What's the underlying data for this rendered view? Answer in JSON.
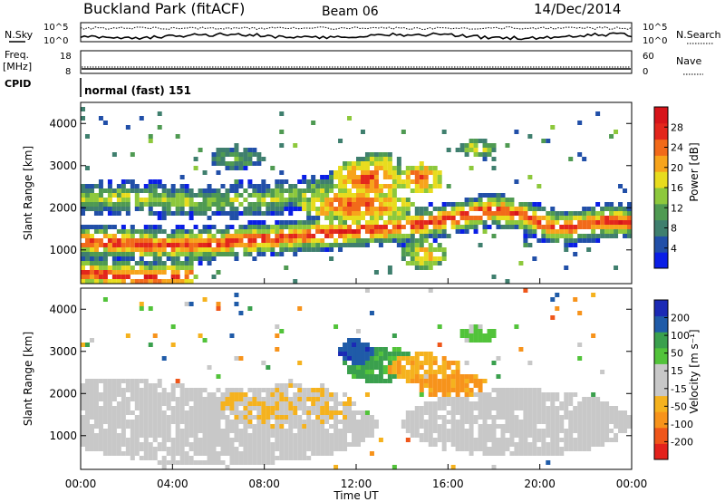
{
  "header": {
    "station": "Buckland Park (fitACF)",
    "beam": "Beam 06",
    "date": "14/Dec/2014"
  },
  "noise_panel": {
    "left_label": "N.Sky",
    "right_label": "N.Search",
    "left_ticks": [
      "10^5",
      "10^0"
    ],
    "right_ticks": [
      "10^5",
      "10^0"
    ]
  },
  "freq_panel": {
    "left_label": "Freq.",
    "left_unit": "[MHz]",
    "right_label": "Nave",
    "left_ticks": [
      "18",
      "8"
    ],
    "right_ticks": [
      "60",
      "0"
    ]
  },
  "cpid_panel": {
    "label": "CPID",
    "mode": "normal (fast) 151"
  },
  "x_axis": {
    "label": "Time UT",
    "ticks": [
      "00:00",
      "04:00",
      "08:00",
      "12:00",
      "16:00",
      "20:00",
      "00:00"
    ]
  },
  "power_panel": {
    "ylabel": "Slant Range [km]",
    "yticks": [
      "4000",
      "3000",
      "2000",
      "1000"
    ],
    "colorbar_label": "Power [dB]",
    "colorbar_ticks": [
      "28",
      "24",
      "20",
      "16",
      "12",
      "8",
      "4"
    ]
  },
  "velocity_panel": {
    "ylabel": "Slant Range [km]",
    "yticks": [
      "4000",
      "3000",
      "2000",
      "1000"
    ],
    "colorbar_label": "Velocity [m s⁻¹]",
    "colorbar_ticks": [
      "200",
      "100",
      "50",
      "15",
      "-15",
      "-50",
      "-100",
      "-200"
    ]
  },
  "colors": {
    "power_scale": [
      "#0a1ee6",
      "#214fa8",
      "#3f7f6e",
      "#4f9a52",
      "#8dc83c",
      "#e8dc1e",
      "#f7a41b",
      "#f26a1a",
      "#e3261c",
      "#d7141a"
    ],
    "velocity_scale": [
      "#e3221c",
      "#ef561a",
      "#f7931b",
      "#f5b21e",
      "#c8c8c8",
      "#c8c8c8",
      "#52c33a",
      "#3aa04d",
      "#1f5ba8",
      "#1b2ab5"
    ]
  },
  "chart_data": [
    {
      "type": "heatmap",
      "title": "Power [dB]",
      "xlabel": "Time UT",
      "ylabel": "Slant Range [km]",
      "xlim": [
        0,
        24
      ],
      "ylim": [
        200,
        4500
      ],
      "color_range": [
        0,
        32
      ],
      "bands": [
        {
          "name": "main",
          "x": [
            0,
            2,
            4,
            6,
            8,
            10,
            11,
            12,
            14,
            16,
            17,
            18,
            19,
            20,
            21,
            22,
            23,
            24
          ],
          "y": [
            1200,
            1150,
            1100,
            1150,
            1250,
            1350,
            1400,
            1450,
            1550,
            1700,
            1850,
            1950,
            1850,
            1650,
            1500,
            1600,
            1700,
            1650
          ],
          "width": 280,
          "peak": 28
        },
        {
          "name": "upper",
          "x": [
            0,
            2,
            4,
            6,
            8,
            10,
            11
          ],
          "y": [
            2200,
            2250,
            2150,
            2150,
            2200,
            2350,
            2450
          ],
          "width": 280,
          "peak": 16
        },
        {
          "name": "near",
          "x": [
            0,
            1,
            2,
            3,
            4,
            5
          ],
          "y": [
            450,
            420,
            380,
            350,
            380,
            400
          ],
          "width": 280,
          "peak": 28
        }
      ],
      "blobs": [
        {
          "t": 12.5,
          "r": 2700,
          "dt": 1.6,
          "dr": 450,
          "peak": 28
        },
        {
          "t": 14.8,
          "r": 2700,
          "dt": 1.0,
          "dr": 350,
          "peak": 28
        },
        {
          "t": 12.0,
          "r": 2050,
          "dt": 2.5,
          "dr": 350,
          "peak": 28
        },
        {
          "t": 13.0,
          "r": 3050,
          "dt": 1.0,
          "dr": 250,
          "peak": 20
        },
        {
          "t": 17.3,
          "r": 3400,
          "dt": 0.9,
          "dr": 200,
          "peak": 18
        },
        {
          "t": 6.8,
          "r": 3200,
          "dt": 1.2,
          "dr": 280,
          "peak": 12
        },
        {
          "t": 15.0,
          "r": 900,
          "dt": 1.0,
          "dr": 350,
          "peak": 22
        }
      ]
    },
    {
      "type": "heatmap",
      "title": "Velocity [m s⁻¹]",
      "xlabel": "Time UT",
      "ylabel": "Slant Range [km]",
      "xlim": [
        0,
        24
      ],
      "ylim": [
        200,
        4500
      ],
      "color_range": [
        -250,
        250
      ],
      "regions": [
        {
          "t": 6.0,
          "r": 1200,
          "dt": 7.0,
          "dr": 900,
          "value": 0
        },
        {
          "t": 2.0,
          "r": 1900,
          "dt": 3.0,
          "dr": 500,
          "value": 0
        },
        {
          "t": 19.0,
          "r": 1300,
          "dt": 5.0,
          "dr": 800,
          "value": 0
        },
        {
          "t": 9.0,
          "r": 1700,
          "dt": 3.0,
          "dr": 500,
          "value": -40
        },
        {
          "t": 13.0,
          "r": 2700,
          "dt": 1.5,
          "dr": 450,
          "value": 120
        },
        {
          "t": 12.0,
          "r": 3000,
          "dt": 0.8,
          "dr": 300,
          "value": 180
        },
        {
          "t": 15.0,
          "r": 2600,
          "dt": 1.6,
          "dr": 350,
          "value": -80
        },
        {
          "t": 15.6,
          "r": 2300,
          "dt": 0.8,
          "dr": 200,
          "value": 60
        },
        {
          "t": 17.3,
          "r": 3400,
          "dt": 0.8,
          "dr": 200,
          "value": 70
        },
        {
          "t": 16.2,
          "r": 2200,
          "dt": 1.5,
          "dr": 300,
          "value": -120
        }
      ]
    }
  ]
}
